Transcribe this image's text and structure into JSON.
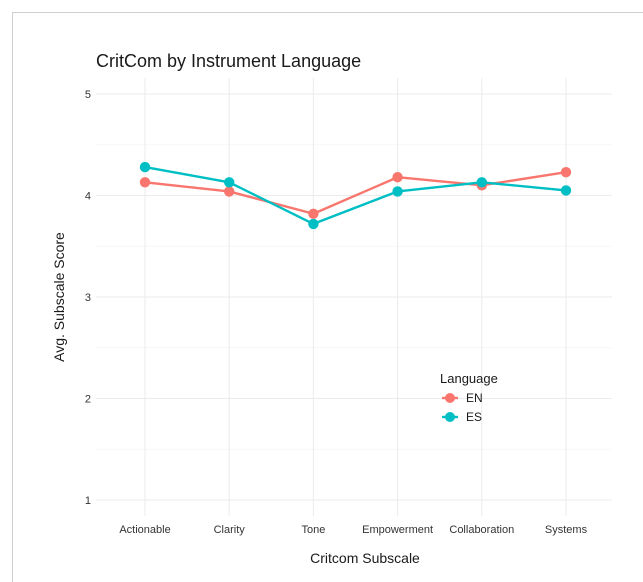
{
  "chart_data": {
    "type": "line",
    "title": "CritCom by Instrument Language",
    "xlabel": "Critcom Subscale",
    "ylabel": "Avg. Subscale Score",
    "categories": [
      "Actionable",
      "Clarity",
      "Tone",
      "Empowerment",
      "Collaboration",
      "Systems"
    ],
    "ylim": [
      1,
      5
    ],
    "yticks": [
      1,
      2,
      3,
      4,
      5
    ],
    "grid": true,
    "legend": {
      "title": "Language",
      "placement": "right-center"
    },
    "series": [
      {
        "name": "EN",
        "color": "#F8766D",
        "values": [
          4.13,
          4.04,
          3.82,
          4.18,
          4.1,
          4.23
        ]
      },
      {
        "name": "ES",
        "color": "#00BFC4",
        "values": [
          4.28,
          4.13,
          3.72,
          4.04,
          4.13,
          4.05
        ]
      }
    ]
  }
}
